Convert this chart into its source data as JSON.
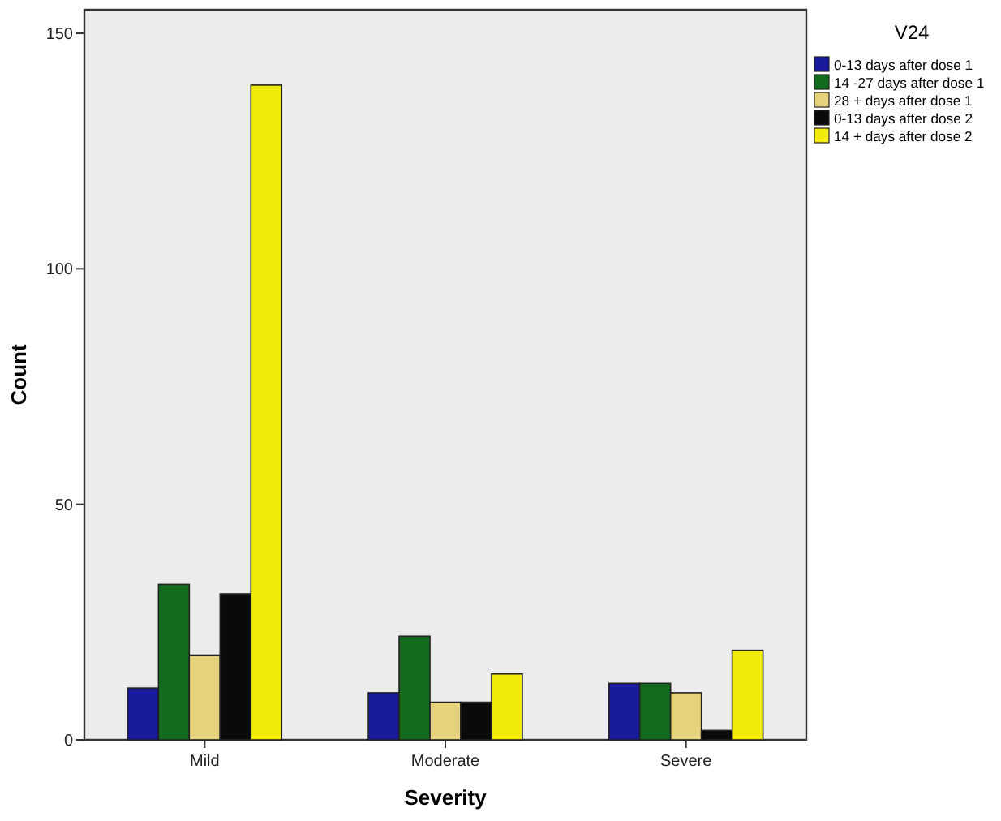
{
  "chart_data": {
    "type": "bar",
    "xlabel": "Severity",
    "ylabel": "Count",
    "legend_title": "V24",
    "categories": [
      "Mild",
      "Moderate",
      "Severe"
    ],
    "series": [
      {
        "name": "0-13 days after dose 1",
        "color": "#1a1a9c",
        "values": [
          11,
          10,
          12
        ]
      },
      {
        "name": "14 -27 days after dose 1",
        "color": "#136b1e",
        "values": [
          33,
          22,
          12
        ]
      },
      {
        "name": "28 + days after dose 1",
        "color": "#e6d27a",
        "values": [
          18,
          8,
          10
        ]
      },
      {
        "name": "0-13 days after dose 2",
        "color": "#0a0a0a",
        "values": [
          31,
          8,
          2
        ]
      },
      {
        "name": "14 + days after dose 2",
        "color": "#f2ea0a",
        "values": [
          139,
          14,
          19
        ]
      }
    ],
    "ylim": [
      0,
      155
    ],
    "yticks": [
      0,
      50,
      100,
      150
    ],
    "grid": false,
    "legend": "top right"
  }
}
